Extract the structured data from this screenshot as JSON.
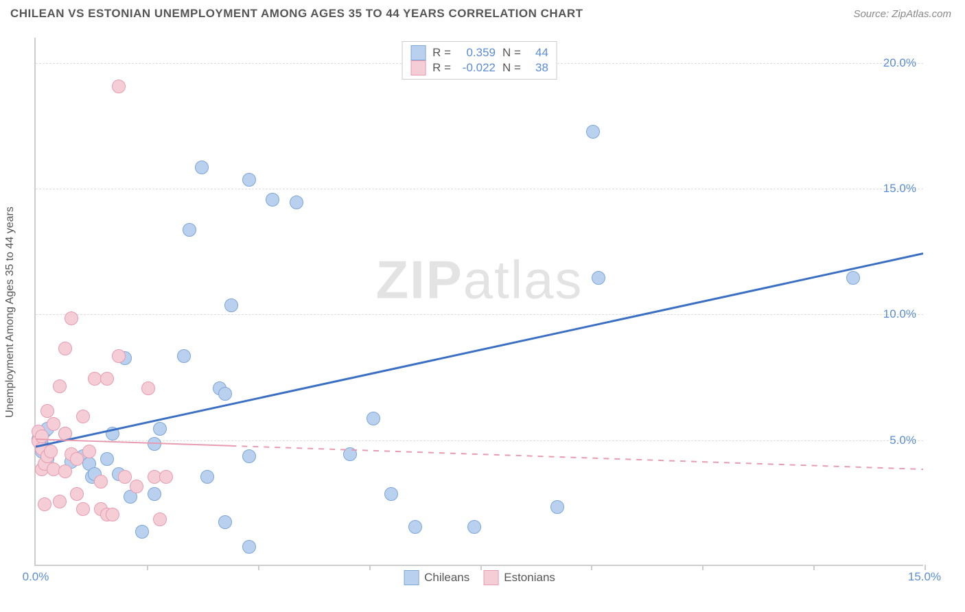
{
  "header": {
    "title": "CHILEAN VS ESTONIAN UNEMPLOYMENT AMONG AGES 35 TO 44 YEARS CORRELATION CHART",
    "source": "Source: ZipAtlas.com"
  },
  "watermark": {
    "part1": "ZIP",
    "part2": "atlas"
  },
  "chart": {
    "type": "scatter",
    "y_axis_label": "Unemployment Among Ages 35 to 44 years",
    "x_domain": [
      0,
      15
    ],
    "y_domain": [
      0,
      21
    ],
    "x_ticks": [
      {
        "pos": 0,
        "label": "0.0%"
      },
      {
        "pos": 15,
        "label": "15.0%"
      }
    ],
    "x_tick_marks": [
      1.875,
      3.75,
      5.625,
      7.5,
      9.375,
      11.25,
      13.125,
      15.0
    ],
    "y_ticks": [
      {
        "pos": 5,
        "label": "5.0%"
      },
      {
        "pos": 10,
        "label": "10.0%"
      },
      {
        "pos": 15,
        "label": "15.0%"
      },
      {
        "pos": 20,
        "label": "20.0%"
      }
    ],
    "gridlines_y": [
      5,
      10,
      15,
      20
    ],
    "background_color": "#ffffff",
    "grid_color": "#dddddd",
    "axis_color": "#cccccc",
    "tick_label_color": "#5a8cd6",
    "axis_label_color": "#555555",
    "axis_label_fontsize": 16,
    "tick_label_fontsize": 17,
    "marker_radius": 10,
    "marker_stroke_width": 1.5,
    "series": [
      {
        "name": "Chileans",
        "color_fill": "#b9d1ef",
        "color_stroke": "#7ba6d8",
        "R": "0.359",
        "N": "44",
        "trend": {
          "x1": 0,
          "y1": 4.7,
          "x2": 15,
          "y2": 12.4,
          "width": 3,
          "dashed": false,
          "color": "#3a6fc4"
        },
        "points": [
          [
            0.05,
            5.0
          ],
          [
            0.1,
            4.8
          ],
          [
            0.1,
            4.5
          ],
          [
            0.15,
            5.3
          ],
          [
            0.15,
            4.6
          ],
          [
            0.2,
            4.2
          ],
          [
            0.2,
            5.4
          ],
          [
            0.5,
            5.2
          ],
          [
            0.6,
            4.1
          ],
          [
            0.8,
            4.3
          ],
          [
            0.9,
            4.0
          ],
          [
            0.95,
            3.5
          ],
          [
            1.0,
            3.6
          ],
          [
            1.2,
            4.2
          ],
          [
            1.3,
            5.2
          ],
          [
            1.4,
            3.6
          ],
          [
            1.5,
            8.2
          ],
          [
            1.6,
            2.7
          ],
          [
            1.8,
            1.3
          ],
          [
            2.0,
            2.8
          ],
          [
            2.0,
            4.8
          ],
          [
            2.1,
            5.4
          ],
          [
            2.5,
            8.3
          ],
          [
            2.6,
            13.3
          ],
          [
            2.8,
            15.8
          ],
          [
            2.9,
            3.5
          ],
          [
            3.1,
            7.0
          ],
          [
            3.2,
            1.7
          ],
          [
            3.2,
            6.8
          ],
          [
            3.3,
            10.3
          ],
          [
            3.6,
            15.3
          ],
          [
            3.6,
            0.7
          ],
          [
            3.6,
            4.3
          ],
          [
            4.0,
            14.5
          ],
          [
            4.4,
            14.4
          ],
          [
            5.3,
            4.4
          ],
          [
            5.7,
            5.8
          ],
          [
            6.0,
            2.8
          ],
          [
            6.4,
            1.5
          ],
          [
            7.4,
            1.5
          ],
          [
            8.8,
            2.3
          ],
          [
            9.4,
            17.2
          ],
          [
            9.5,
            11.4
          ],
          [
            13.8,
            11.4
          ]
        ]
      },
      {
        "name": "Estonians",
        "color_fill": "#f5cdd6",
        "color_stroke": "#e79bb0",
        "R": "-0.022",
        "N": "38",
        "trend": {
          "x1": 0,
          "y1": 5.0,
          "x2": 15,
          "y2": 3.8,
          "width": 2,
          "dashed": true,
          "color": "#e79bb0",
          "solid_until": 3.3
        },
        "points": [
          [
            0.05,
            4.9
          ],
          [
            0.05,
            5.3
          ],
          [
            0.1,
            4.6
          ],
          [
            0.1,
            3.8
          ],
          [
            0.1,
            5.1
          ],
          [
            0.15,
            4.0
          ],
          [
            0.15,
            2.4
          ],
          [
            0.2,
            4.3
          ],
          [
            0.2,
            6.1
          ],
          [
            0.25,
            4.5
          ],
          [
            0.3,
            3.8
          ],
          [
            0.3,
            5.6
          ],
          [
            0.4,
            7.1
          ],
          [
            0.4,
            2.5
          ],
          [
            0.5,
            8.6
          ],
          [
            0.5,
            3.7
          ],
          [
            0.5,
            5.2
          ],
          [
            0.6,
            9.8
          ],
          [
            0.6,
            4.4
          ],
          [
            0.7,
            4.2
          ],
          [
            0.7,
            2.8
          ],
          [
            0.8,
            2.2
          ],
          [
            0.8,
            5.9
          ],
          [
            0.9,
            4.5
          ],
          [
            1.0,
            7.4
          ],
          [
            1.1,
            2.2
          ],
          [
            1.1,
            3.3
          ],
          [
            1.2,
            7.4
          ],
          [
            1.2,
            2.0
          ],
          [
            1.3,
            2.0
          ],
          [
            1.4,
            8.3
          ],
          [
            1.4,
            19.0
          ],
          [
            1.5,
            3.5
          ],
          [
            1.7,
            3.1
          ],
          [
            1.9,
            7.0
          ],
          [
            2.0,
            3.5
          ],
          [
            2.1,
            1.8
          ],
          [
            2.2,
            3.5
          ]
        ]
      }
    ],
    "legend_corr": {
      "R_label": "R =",
      "N_label": "N ="
    },
    "legend_series_label": {
      "s1": "Chileans",
      "s2": "Estonians"
    }
  }
}
